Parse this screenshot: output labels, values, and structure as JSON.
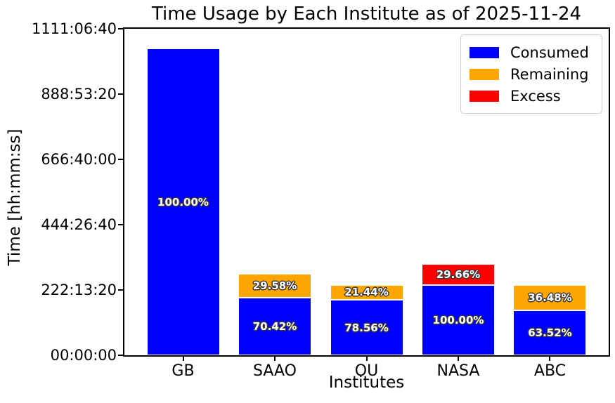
{
  "figure": {
    "title": "Time Usage by Each Institute as of 2025-11-24",
    "xlabel": "Institutes",
    "ylabel": "Time [hh:mm:ss]"
  },
  "legend": {
    "items": [
      {
        "name": "consumed",
        "label": "Consumed",
        "color": "#0000ff"
      },
      {
        "name": "remaining",
        "label": "Remaining",
        "color": "#ffa500"
      },
      {
        "name": "excess",
        "label": "Excess",
        "color": "#ff0000"
      }
    ]
  },
  "chart_data": {
    "type": "bar",
    "stacked": true,
    "title": "Time Usage by Each Institute as of 2025-11-24",
    "xlabel": "Institutes",
    "ylabel": "Time [hh:mm:ss]",
    "categories": [
      "GB",
      "SAAO",
      "OU",
      "NASA",
      "ABC"
    ],
    "ylim_seconds": [
      0,
      4000000
    ],
    "grid": false,
    "legend_position": "upper right",
    "yticks": [
      {
        "seconds": 0,
        "label": "00:00:00"
      },
      {
        "seconds": 800000,
        "label": "222:13:20"
      },
      {
        "seconds": 1600000,
        "label": "444:26:40"
      },
      {
        "seconds": 2400000,
        "label": "666:40:00"
      },
      {
        "seconds": 3200000,
        "label": "888:53:20"
      },
      {
        "seconds": 4000000,
        "label": "1111:06:40"
      }
    ],
    "series": [
      {
        "name": "Consumed",
        "color": "#0000ff",
        "values_seconds": [
          3758400,
          704200,
          678760,
          864000,
          548810
        ],
        "percent_labels": [
          "100.00%",
          "70.42%",
          "78.56%",
          "100.00%",
          "63.52%"
        ]
      },
      {
        "name": "Remaining",
        "color": "#ffa500",
        "values_seconds": [
          0,
          295800,
          185240,
          0,
          315190
        ],
        "percent_labels": [
          "",
          "29.58%",
          "21.44%",
          "",
          "36.48%"
        ]
      },
      {
        "name": "Excess",
        "color": "#ff0000",
        "values_seconds": [
          0,
          0,
          0,
          256260,
          0
        ],
        "percent_labels": [
          "",
          "",
          "",
          "29.66%",
          ""
        ]
      }
    ]
  }
}
